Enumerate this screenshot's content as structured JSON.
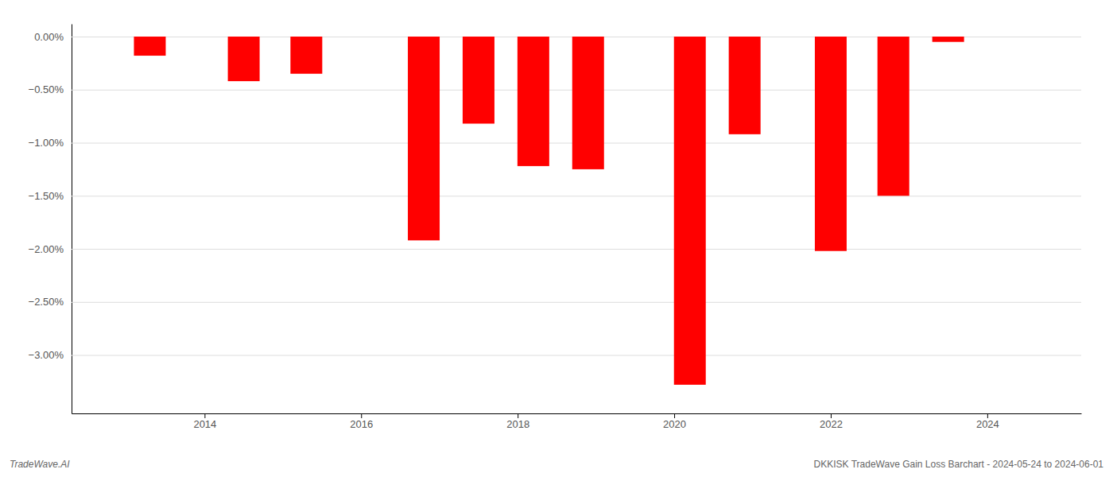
{
  "chart_data": {
    "type": "bar",
    "x": [
      2013.3,
      2014.5,
      2015.3,
      2016.8,
      2017.5,
      2018.2,
      2018.9,
      2020.2,
      2020.9,
      2022.0,
      2022.8,
      2023.5
    ],
    "values": [
      -0.18,
      -0.42,
      -0.35,
      -1.92,
      -0.82,
      -1.22,
      -1.25,
      -3.28,
      -0.92,
      -2.02,
      -1.5,
      -0.05
    ],
    "color": "#ff0000",
    "xlim": [
      2012.3,
      2025.2
    ],
    "xticks": [
      2014,
      2016,
      2018,
      2020,
      2022,
      2024
    ],
    "ylim": [
      -3.55,
      0.12
    ],
    "yticks": [
      {
        "value": 0.0,
        "label": "0.00%"
      },
      {
        "value": -0.5,
        "label": "−0.50%"
      },
      {
        "value": -1.0,
        "label": "−1.00%"
      },
      {
        "value": -1.5,
        "label": "−1.50%"
      },
      {
        "value": -2.0,
        "label": "−2.00%"
      },
      {
        "value": -2.5,
        "label": "−2.50%"
      },
      {
        "value": -3.0,
        "label": "−3.00%"
      }
    ],
    "grid": true,
    "annotations": [
      "TradeWave.AI",
      "DKKISK TradeWave Gain Loss Barchart - 2024-05-24 to 2024-06-01"
    ]
  }
}
